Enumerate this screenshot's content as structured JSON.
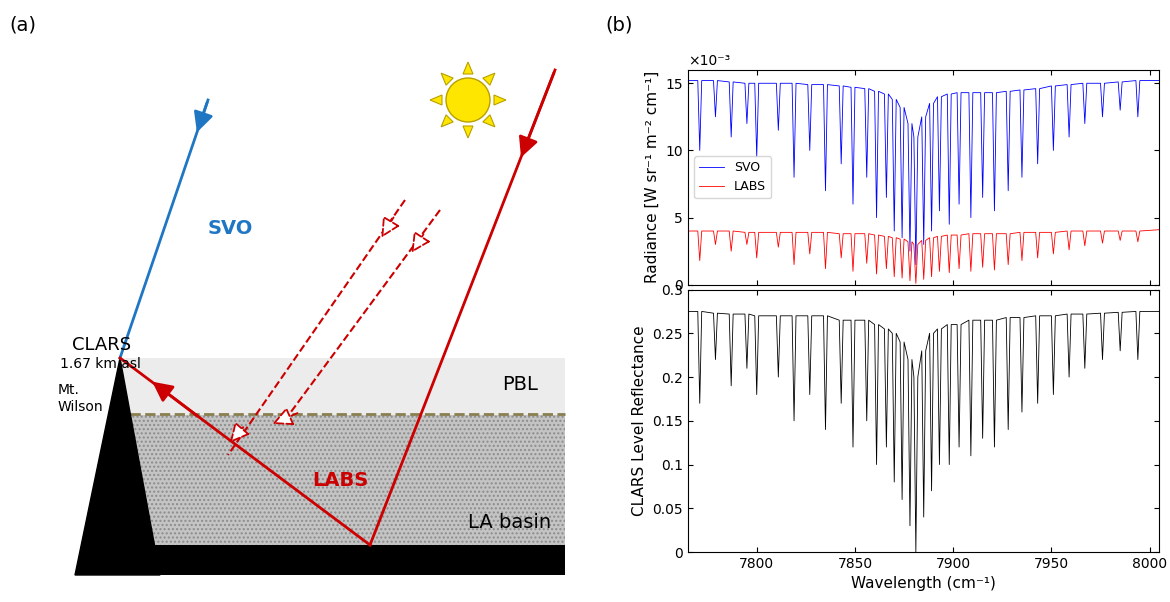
{
  "panel_labels": [
    "(a)",
    "(b)"
  ],
  "diagram": {
    "site": "CLARS",
    "altitude": "1.67 km asl",
    "mountain": "Mt.\nWilson",
    "layer": "PBL",
    "basin": "LA basin",
    "svo_label": "SVO",
    "labs_label": "LABS"
  },
  "chart_data": [
    {
      "type": "line",
      "ylabel": "Radiance [W sr⁻¹ m⁻² cm⁻¹]",
      "annotations": [
        "×10⁻³"
      ],
      "x": [
        7765,
        7770,
        7771,
        7772,
        7778,
        7779,
        7780,
        7786,
        7787,
        7788,
        7794,
        7795,
        7796,
        7799,
        7800,
        7801,
        7810,
        7811,
        7812,
        7818,
        7819,
        7820,
        7826,
        7827,
        7828,
        7834,
        7835,
        7836,
        7842,
        7843,
        7844,
        7848,
        7849,
        7850,
        7855,
        7856,
        7857,
        7860,
        7861,
        7862,
        7865,
        7866,
        7867,
        7869,
        7870,
        7871,
        7873,
        7874,
        7875,
        7877,
        7878,
        7879,
        7880,
        7881,
        7882,
        7884,
        7885,
        7886,
        7888,
        7889,
        7890,
        7892,
        7893,
        7894,
        7897,
        7898,
        7899,
        7902,
        7903,
        7904,
        7908,
        7909,
        7910,
        7914,
        7915,
        7916,
        7920,
        7921,
        7922,
        7927,
        7928,
        7929,
        7934,
        7935,
        7936,
        7942,
        7943,
        7944,
        7950,
        7951,
        7952,
        7958,
        7959,
        7960,
        7966,
        7967,
        7968,
        7975,
        7976,
        7977,
        7984,
        7985,
        7986,
        7993,
        7994,
        7995,
        8005
      ],
      "series": [
        {
          "name": "SVO",
          "color": "#0000ff",
          "values": [
            0.0152,
            0.0152,
            0.01,
            0.0152,
            0.0152,
            0.0125,
            0.0152,
            0.0151,
            0.011,
            0.0151,
            0.015,
            0.012,
            0.015,
            0.015,
            0.0095,
            0.015,
            0.015,
            0.0115,
            0.015,
            0.015,
            0.008,
            0.015,
            0.0149,
            0.01,
            0.0149,
            0.0149,
            0.007,
            0.0149,
            0.0148,
            0.009,
            0.0148,
            0.0147,
            0.006,
            0.0147,
            0.0146,
            0.008,
            0.0146,
            0.0144,
            0.005,
            0.0144,
            0.0142,
            0.0065,
            0.0142,
            0.0138,
            0.004,
            0.0138,
            0.0132,
            0.0035,
            0.0132,
            0.012,
            0.0025,
            0.012,
            0.011,
            0.0015,
            0.011,
            0.0125,
            0.003,
            0.0125,
            0.0135,
            0.004,
            0.0135,
            0.014,
            0.0055,
            0.014,
            0.0142,
            0.0045,
            0.0142,
            0.0143,
            0.006,
            0.0143,
            0.0143,
            0.005,
            0.0143,
            0.0143,
            0.0065,
            0.0143,
            0.0143,
            0.0055,
            0.0143,
            0.0144,
            0.007,
            0.0144,
            0.0145,
            0.008,
            0.0145,
            0.0146,
            0.009,
            0.0146,
            0.0148,
            0.01,
            0.0148,
            0.0149,
            0.011,
            0.0149,
            0.015,
            0.012,
            0.015,
            0.015,
            0.0125,
            0.015,
            0.0151,
            0.013,
            0.0151,
            0.0152,
            0.0125,
            0.0152,
            0.0152
          ]
        },
        {
          "name": "LABS",
          "color": "#ff0000",
          "values": [
            0.004,
            0.004,
            0.0018,
            0.004,
            0.004,
            0.003,
            0.004,
            0.004,
            0.0025,
            0.004,
            0.0039,
            0.003,
            0.0039,
            0.0039,
            0.002,
            0.0039,
            0.0039,
            0.0028,
            0.0039,
            0.0039,
            0.0015,
            0.0039,
            0.0039,
            0.0023,
            0.0039,
            0.0039,
            0.0012,
            0.0039,
            0.0038,
            0.002,
            0.0038,
            0.0038,
            0.001,
            0.0038,
            0.0038,
            0.0016,
            0.0038,
            0.0037,
            0.0008,
            0.0037,
            0.0036,
            0.0012,
            0.0036,
            0.0035,
            0.0006,
            0.0035,
            0.0034,
            0.0005,
            0.0034,
            0.0032,
            0.0003,
            0.0032,
            0.003,
            0.0001,
            0.003,
            0.0033,
            0.0004,
            0.0033,
            0.0035,
            0.0006,
            0.0035,
            0.0036,
            0.001,
            0.0036,
            0.0037,
            0.0009,
            0.0037,
            0.0037,
            0.0012,
            0.0037,
            0.0038,
            0.001,
            0.0038,
            0.0038,
            0.0013,
            0.0038,
            0.0038,
            0.0011,
            0.0038,
            0.0038,
            0.0015,
            0.0038,
            0.0039,
            0.0018,
            0.0039,
            0.0039,
            0.002,
            0.0039,
            0.0039,
            0.0023,
            0.0039,
            0.004,
            0.0026,
            0.004,
            0.004,
            0.0029,
            0.004,
            0.004,
            0.0031,
            0.004,
            0.004,
            0.0033,
            0.004,
            0.004,
            0.0032,
            0.004,
            0.0041
          ]
        }
      ],
      "xlim": [
        7765,
        8005
      ],
      "xticks": [
        7800,
        7850,
        7900,
        7950,
        8000
      ],
      "ylim": [
        0,
        0.016
      ],
      "yticks": [
        0,
        {
          "value": 0.005,
          "label": "5"
        },
        {
          "value": 0.01,
          "label": "10"
        },
        {
          "value": 0.015,
          "label": "15"
        }
      ],
      "legend": "center left",
      "tick_labels": "y"
    },
    {
      "type": "line",
      "xlabel": "Wavelength (cm⁻¹)",
      "ylabel": "CLARS Level Reflectance",
      "x": [
        7765,
        7770,
        7771,
        7772,
        7778,
        7779,
        7780,
        7786,
        7787,
        7788,
        7794,
        7795,
        7796,
        7799,
        7800,
        7801,
        7810,
        7811,
        7812,
        7818,
        7819,
        7820,
        7826,
        7827,
        7828,
        7834,
        7835,
        7836,
        7842,
        7843,
        7844,
        7848,
        7849,
        7850,
        7855,
        7856,
        7857,
        7860,
        7861,
        7862,
        7865,
        7866,
        7867,
        7869,
        7870,
        7871,
        7873,
        7874,
        7875,
        7877,
        7878,
        7879,
        7880,
        7881,
        7882,
        7884,
        7885,
        7886,
        7888,
        7889,
        7890,
        7892,
        7893,
        7894,
        7897,
        7898,
        7899,
        7902,
        7903,
        7904,
        7908,
        7909,
        7910,
        7914,
        7915,
        7916,
        7920,
        7921,
        7922,
        7927,
        7928,
        7929,
        7934,
        7935,
        7936,
        7942,
        7943,
        7944,
        7950,
        7951,
        7952,
        7958,
        7959,
        7960,
        7966,
        7967,
        7968,
        7975,
        7976,
        7977,
        7984,
        7985,
        7986,
        7993,
        7994,
        7995,
        8005
      ],
      "color": "#000000",
      "values": [
        0.275,
        0.275,
        0.17,
        0.275,
        0.273,
        0.22,
        0.273,
        0.272,
        0.19,
        0.272,
        0.272,
        0.21,
        0.272,
        0.27,
        0.18,
        0.27,
        0.27,
        0.2,
        0.27,
        0.27,
        0.15,
        0.27,
        0.27,
        0.18,
        0.27,
        0.27,
        0.14,
        0.27,
        0.265,
        0.17,
        0.265,
        0.265,
        0.12,
        0.265,
        0.265,
        0.15,
        0.265,
        0.26,
        0.1,
        0.26,
        0.255,
        0.12,
        0.255,
        0.25,
        0.08,
        0.25,
        0.24,
        0.06,
        0.24,
        0.22,
        0.03,
        0.22,
        0.2,
        0.0,
        0.2,
        0.23,
        0.04,
        0.23,
        0.25,
        0.07,
        0.25,
        0.255,
        0.1,
        0.255,
        0.26,
        0.1,
        0.26,
        0.26,
        0.12,
        0.26,
        0.265,
        0.11,
        0.265,
        0.265,
        0.13,
        0.265,
        0.265,
        0.12,
        0.265,
        0.268,
        0.14,
        0.268,
        0.268,
        0.16,
        0.268,
        0.27,
        0.17,
        0.27,
        0.27,
        0.18,
        0.27,
        0.272,
        0.2,
        0.272,
        0.272,
        0.21,
        0.272,
        0.273,
        0.22,
        0.273,
        0.274,
        0.23,
        0.274,
        0.275,
        0.22,
        0.275,
        0.275
      ],
      "xlim": [
        7765,
        8005
      ],
      "xticks": [
        7800,
        7850,
        7900,
        7950,
        8000
      ],
      "ylim": [
        0,
        0.3
      ],
      "yticks": [
        0,
        0.05,
        0.1,
        0.15,
        0.2,
        0.25,
        0.3
      ]
    }
  ]
}
